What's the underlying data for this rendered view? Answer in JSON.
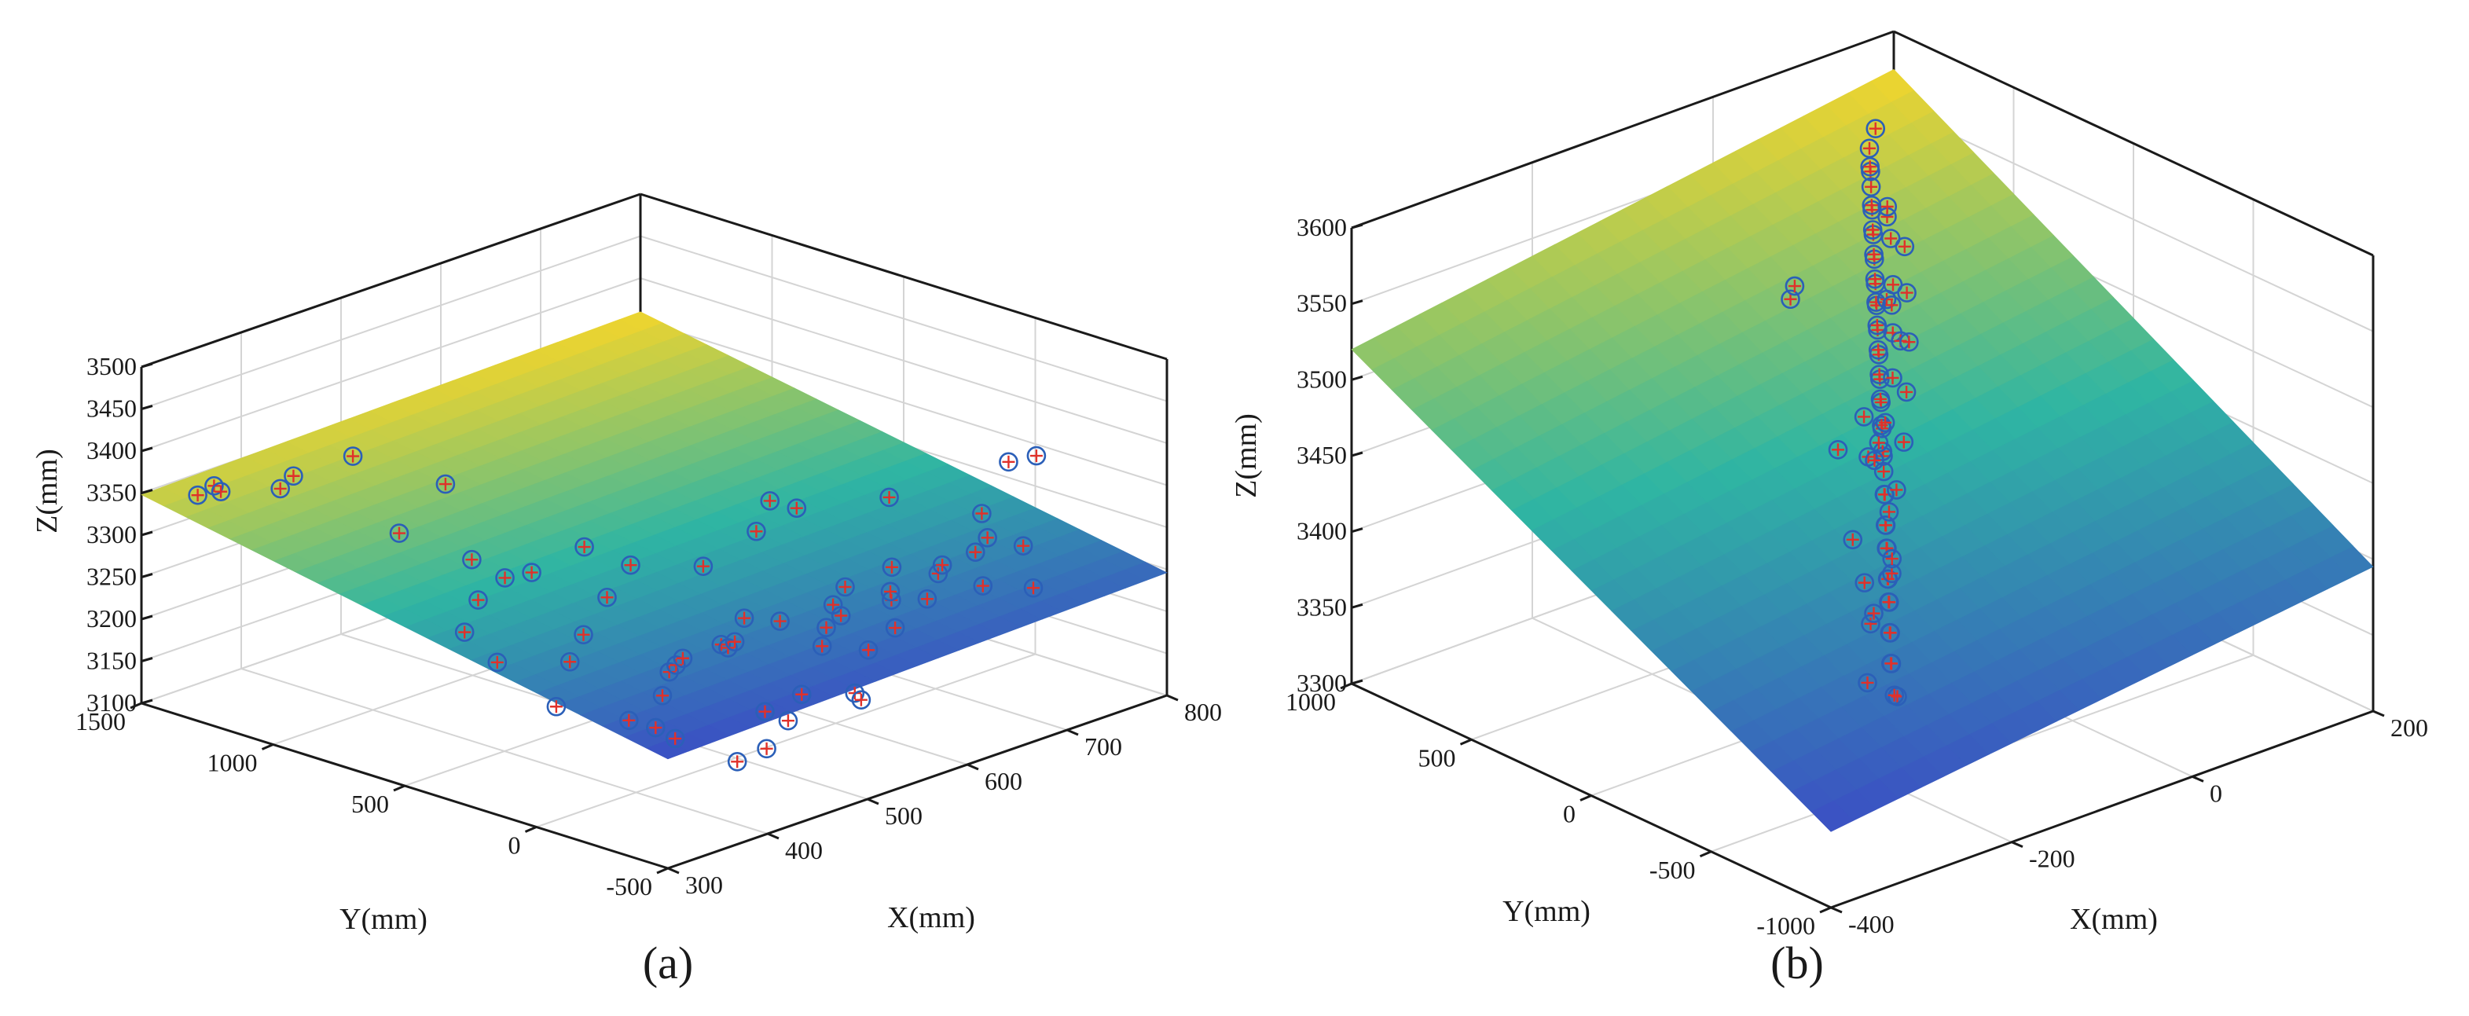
{
  "colors": {
    "surface_low": "#3b4fc4",
    "surface_mid": "#2fb5a3",
    "surface_high": "#f2d52c",
    "marker_circle": "#2b5fb8",
    "marker_plus": "#e0312a",
    "axis_line": "#1a1a1a",
    "grid": "#d4d4d4"
  },
  "chart_data": [
    {
      "type": "scatter3d",
      "panel_label": "(a)",
      "xlabel": "X(mm)",
      "ylabel": "Y(mm)",
      "zlabel": "Z(mm)",
      "xlim": [
        300,
        800
      ],
      "ylim": [
        -500,
        1500
      ],
      "zlim": [
        3100,
        3500
      ],
      "xticks": [
        "300",
        "400",
        "500",
        "600",
        "700",
        "800"
      ],
      "yticks": [
        "-500",
        "0",
        "500",
        "1000",
        "1500"
      ],
      "zticks": [
        "3100",
        "3150",
        "3200",
        "3250",
        "3300",
        "3350",
        "3400",
        "3450",
        "3500"
      ],
      "grid": true,
      "series": [
        {
          "name": "fitted plane",
          "kind": "surface",
          "corner_z": [
            3230,
            3246,
            3348,
            3360
          ]
        },
        {
          "name": "measured points",
          "kind": "scatter",
          "marker": "circle-plus",
          "points": [
            [
              340,
              -200,
              3230
            ],
            [
              360,
              -300,
              3210
            ],
            [
              380,
              -150,
              3200
            ],
            [
              400,
              -100,
              3225
            ],
            [
              420,
              -50,
              3240
            ],
            [
              440,
              0,
              3235
            ],
            [
              460,
              50,
              3230
            ],
            [
              480,
              -20,
              3245
            ],
            [
              500,
              30,
              3228
            ],
            [
              520,
              80,
              3222
            ],
            [
              540,
              120,
              3238
            ],
            [
              560,
              60,
              3232
            ],
            [
              580,
              -40,
              3226
            ],
            [
              600,
              10,
              3240
            ],
            [
              620,
              40,
              3250
            ],
            [
              640,
              -60,
              3236
            ],
            [
              660,
              20,
              3230
            ],
            [
              680,
              90,
              3244
            ],
            [
              700,
              -10,
              3238
            ],
            [
              720,
              50,
              3234
            ],
            [
              740,
              0,
              3246
            ],
            [
              760,
              30,
              3252
            ],
            [
              780,
              -30,
              3240
            ],
            [
              360,
              100,
              3262
            ],
            [
              400,
              200,
              3268
            ],
            [
              450,
              300,
              3282
            ],
            [
              500,
              400,
              3290
            ],
            [
              420,
              800,
              3380
            ],
            [
              380,
              1000,
              3410
            ],
            [
              360,
              1200,
              3360
            ],
            [
              320,
              1300,
              3370
            ],
            [
              340,
              1350,
              3350
            ],
            [
              330,
              1400,
              3345
            ],
            [
              360,
              1150,
              3380
            ],
            [
              400,
              900,
              3320
            ],
            [
              420,
              700,
              3300
            ],
            [
              480,
              500,
              3310
            ],
            [
              520,
              200,
              3300
            ],
            [
              560,
              150,
              3330
            ],
            [
              600,
              250,
              3340
            ],
            [
              640,
              300,
              3310
            ],
            [
              680,
              100,
              3326
            ],
            [
              720,
              -100,
              3310
            ],
            [
              760,
              -50,
              3350
            ],
            [
              780,
              -80,
              3352
            ],
            [
              500,
              -250,
              3200
            ],
            [
              540,
              -300,
              3190
            ],
            [
              580,
              -200,
              3215
            ],
            [
              620,
              -150,
              3220
            ],
            [
              660,
              -120,
              3235
            ],
            [
              700,
              -180,
              3240
            ],
            [
              740,
              -220,
              3225
            ],
            [
              460,
              -350,
              3195
            ],
            [
              420,
              -420,
              3185
            ],
            [
              380,
              -460,
              3190
            ],
            [
              400,
              600,
              3270
            ],
            [
              440,
              650,
              3275
            ],
            [
              480,
              700,
              3260
            ],
            [
              360,
              500,
              3258
            ],
            [
              340,
              300,
              3250
            ],
            [
              320,
              0,
              3235
            ],
            [
              450,
              -300,
              3205
            ],
            [
              520,
              -400,
              3200
            ],
            [
              560,
              -100,
              3218
            ],
            [
              600,
              -20,
              3230
            ]
          ]
        }
      ]
    },
    {
      "type": "scatter3d",
      "panel_label": "(b)",
      "xlabel": "X(mm)",
      "ylabel": "Y(mm)",
      "zlabel": "Z(mm)",
      "xlim": [
        -400,
        200
      ],
      "ylim": [
        -1000,
        1000
      ],
      "zlim": [
        3300,
        3600
      ],
      "xticks": [
        "-400",
        "-200",
        "0",
        "200"
      ],
      "yticks": [
        "-1000",
        "-500",
        "0",
        "500",
        "1000"
      ],
      "zticks": [
        "3300",
        "3350",
        "3400",
        "3450",
        "3500",
        "3550",
        "3600"
      ],
      "grid": true,
      "series": [
        {
          "name": "fitted plane",
          "kind": "surface",
          "corner_z": [
            3350,
            3395,
            3520,
            3575
          ]
        },
        {
          "name": "measured points",
          "kind": "scatter",
          "marker": "circle-plus",
          "points": [
            [
              -300,
              -900,
              3410
            ],
            [
              -290,
              -850,
              3405
            ],
            [
              -280,
              -800,
              3420
            ],
            [
              -270,
              -760,
              3415
            ],
            [
              -260,
              -720,
              3430
            ],
            [
              -250,
              -680,
              3425
            ],
            [
              -240,
              -640,
              3440
            ],
            [
              -230,
              -600,
              3435
            ],
            [
              -220,
              -560,
              3445
            ],
            [
              -210,
              -520,
              3440
            ],
            [
              -200,
              -480,
              3455
            ],
            [
              -190,
              -440,
              3450
            ],
            [
              -180,
              -400,
              3460
            ],
            [
              -170,
              -360,
              3455
            ],
            [
              -160,
              -320,
              3470
            ],
            [
              -150,
              -280,
              3465
            ],
            [
              -140,
              -240,
              3475
            ],
            [
              -130,
              -200,
              3480
            ],
            [
              -120,
              -160,
              3478
            ],
            [
              -110,
              -120,
              3488
            ],
            [
              -100,
              -80,
              3485
            ],
            [
              -90,
              -40,
              3495
            ],
            [
              -80,
              0,
              3492
            ],
            [
              -70,
              40,
              3500
            ],
            [
              -60,
              80,
              3498
            ],
            [
              -50,
              120,
              3506
            ],
            [
              -40,
              160,
              3504
            ],
            [
              -30,
              200,
              3512
            ],
            [
              -20,
              240,
              3510
            ],
            [
              -10,
              280,
              3518
            ],
            [
              0,
              320,
              3515
            ],
            [
              10,
              360,
              3522
            ],
            [
              20,
              400,
              3520
            ],
            [
              30,
              440,
              3528
            ],
            [
              40,
              480,
              3526
            ],
            [
              50,
              520,
              3534
            ],
            [
              60,
              560,
              3532
            ],
            [
              70,
              600,
              3540
            ],
            [
              80,
              640,
              3538
            ],
            [
              90,
              680,
              3545
            ],
            [
              100,
              720,
              3550
            ],
            [
              110,
              760,
              3548
            ],
            [
              120,
              800,
              3555
            ],
            [
              -250,
              -600,
              3425
            ],
            [
              -200,
              -500,
              3440
            ],
            [
              -150,
              -300,
              3455
            ],
            [
              -120,
              -100,
              3470
            ],
            [
              -80,
              -20,
              3478
            ],
            [
              -40,
              100,
              3490
            ],
            [
              0,
              250,
              3500
            ],
            [
              40,
              400,
              3512
            ],
            [
              80,
              560,
              3522
            ],
            [
              -100,
              300,
              3540
            ],
            [
              -90,
              320,
              3545
            ],
            [
              -60,
              100,
              3440
            ],
            [
              -50,
              120,
              3448
            ],
            [
              -270,
              -650,
              3460
            ],
            [
              -180,
              -200,
              3495
            ],
            [
              -20,
              200,
              3530
            ],
            [
              60,
              500,
              3545
            ],
            [
              -230,
              -450,
              3465
            ],
            [
              -130,
              -120,
              3500
            ],
            [
              -10,
              180,
              3502
            ],
            [
              20,
              330,
              3508
            ],
            [
              100,
              650,
              3532
            ],
            [
              140,
              850,
              3560
            ],
            [
              -280,
              -700,
              3400
            ],
            [
              -220,
              -500,
              3418
            ],
            [
              -160,
              -350,
              3430
            ],
            [
              -110,
              -180,
              3452
            ],
            [
              -70,
              -60,
              3466
            ],
            [
              -30,
              80,
              3480
            ],
            [
              10,
              220,
              3494
            ],
            [
              50,
              380,
              3506
            ],
            [
              90,
              540,
              3516
            ]
          ]
        }
      ]
    }
  ]
}
